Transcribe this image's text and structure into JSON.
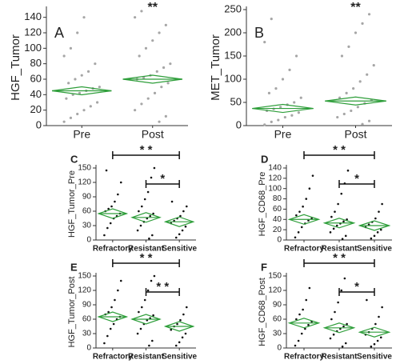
{
  "chart_data": [
    {
      "type": "strip",
      "label": "A",
      "ylabel": "HGF_Tumor",
      "categories": [
        "Pre",
        "Post"
      ],
      "points": [
        [
          5,
          10,
          15,
          20,
          25,
          30,
          35,
          40,
          42,
          45,
          48,
          50,
          55,
          60,
          65,
          70,
          80,
          90,
          100,
          120,
          140
        ],
        [
          5,
          12,
          20,
          28,
          35,
          42,
          50,
          55,
          60,
          62,
          65,
          70,
          75,
          80,
          90,
          100,
          110,
          120,
          130,
          140,
          148
        ]
      ],
      "means": [
        45,
        60
      ],
      "ylim": [
        0,
        150
      ],
      "yticks": [
        0,
        20,
        40,
        60,
        80,
        100,
        120,
        140
      ],
      "color": "#a6a6a6",
      "mean_color": "#2e9e3a",
      "annotations": [
        {
          "category": "Post",
          "label": "**"
        }
      ]
    },
    {
      "type": "strip",
      "label": "B",
      "ylabel": "MET_Tumor",
      "categories": [
        "Pre",
        "Post"
      ],
      "points": [
        [
          2,
          8,
          12,
          18,
          22,
          28,
          32,
          36,
          40,
          45,
          50,
          60,
          70,
          80,
          100,
          120,
          150,
          180,
          230
        ],
        [
          3,
          10,
          18,
          25,
          32,
          40,
          48,
          55,
          60,
          70,
          80,
          95,
          110,
          130,
          150,
          170,
          200,
          220,
          240
        ]
      ],
      "means": [
        37,
        53
      ],
      "ylim": [
        0,
        250
      ],
      "yticks": [
        0,
        50,
        100,
        150,
        200,
        250
      ],
      "color": "#a6a6a6",
      "mean_color": "#2e9e3a",
      "annotations": [
        {
          "category": "Post",
          "label": "**"
        }
      ]
    },
    {
      "type": "strip",
      "label": "C",
      "ylabel": "HGF_Tumor_Pre",
      "categories": [
        "Refractory",
        "Resistant",
        "Sensitive"
      ],
      "points": [
        [
          10,
          25,
          35,
          45,
          50,
          55,
          60,
          65,
          70,
          80,
          95,
          120,
          145
        ],
        [
          3,
          10,
          20,
          30,
          38,
          45,
          50,
          55,
          60,
          70,
          85,
          100,
          130,
          150
        ],
        [
          5,
          12,
          20,
          28,
          35,
          40,
          45,
          50,
          60,
          70,
          80
        ]
      ],
      "means": [
        55,
        47,
        38
      ],
      "ylim": [
        0,
        150
      ],
      "yticks": [
        0,
        30,
        60,
        90,
        120,
        150
      ],
      "color": "#111111",
      "mean_color": "#2e9e3a",
      "brackets": [
        {
          "from": "Refractory",
          "to": "Sensitive",
          "label": "* *"
        },
        {
          "from": "Resistant",
          "to": "Sensitive",
          "label": "*"
        }
      ]
    },
    {
      "type": "strip",
      "label": "D",
      "ylabel": "HGF_CD68_Pre",
      "categories": [
        "Refractory",
        "Resistant",
        "Sensitive"
      ],
      "points": [
        [
          5,
          15,
          25,
          32,
          38,
          42,
          48,
          55,
          65,
          80,
          100,
          125
        ],
        [
          2,
          8,
          15,
          22,
          28,
          32,
          36,
          40,
          45,
          55,
          70,
          90,
          110,
          135
        ],
        [
          3,
          8,
          15,
          20,
          25,
          30,
          35,
          42,
          55,
          70
        ]
      ],
      "means": [
        40,
        33,
        28
      ],
      "ylim": [
        0,
        140
      ],
      "yticks": [
        0,
        20,
        40,
        60,
        80,
        100,
        120,
        140
      ],
      "color": "#111111",
      "mean_color": "#2e9e3a",
      "brackets": [
        {
          "from": "Refractory",
          "to": "Sensitive",
          "label": "* *"
        },
        {
          "from": "Resistant",
          "to": "Sensitive",
          "label": "*"
        }
      ]
    },
    {
      "type": "strip",
      "label": "E",
      "ylabel": "HGF_Tumor_Post",
      "categories": [
        "Refractory",
        "Resistant",
        "Sensitive"
      ],
      "points": [
        [
          10,
          25,
          40,
          50,
          60,
          65,
          70,
          75,
          85,
          100,
          120,
          140
        ],
        [
          5,
          15,
          30,
          40,
          50,
          58,
          62,
          68,
          75,
          85,
          100,
          120,
          140,
          150
        ],
        [
          5,
          12,
          22,
          30,
          38,
          45,
          50,
          58,
          70,
          85
        ]
      ],
      "means": [
        65,
        60,
        45
      ],
      "ylim": [
        0,
        150
      ],
      "yticks": [
        0,
        30,
        60,
        90,
        120,
        150
      ],
      "color": "#111111",
      "mean_color": "#2e9e3a",
      "brackets": [
        {
          "from": "Refractory",
          "to": "Sensitive",
          "label": "* *"
        },
        {
          "from": "Resistant",
          "to": "Sensitive",
          "label": "* *"
        }
      ]
    },
    {
      "type": "strip",
      "label": "F",
      "ylabel": "HGF_CD68_Post",
      "categories": [
        "Refractory",
        "Resistant",
        "Sensitive"
      ],
      "points": [
        [
          5,
          15,
          30,
          40,
          48,
          55,
          60,
          70,
          80,
          100,
          125
        ],
        [
          3,
          10,
          20,
          28,
          35,
          40,
          45,
          50,
          60,
          75,
          95,
          120,
          145
        ],
        [
          3,
          8,
          15,
          22,
          28,
          33,
          40,
          50,
          65,
          85,
          100
        ]
      ],
      "means": [
        52,
        42,
        33
      ],
      "ylim": [
        0,
        150
      ],
      "yticks": [
        0,
        30,
        60,
        90,
        120,
        150
      ],
      "color": "#111111",
      "mean_color": "#2e9e3a",
      "brackets": [
        {
          "from": "Refractory",
          "to": "Sensitive",
          "label": "* *"
        },
        {
          "from": "Resistant",
          "to": "Sensitive",
          "label": "*"
        }
      ]
    }
  ]
}
